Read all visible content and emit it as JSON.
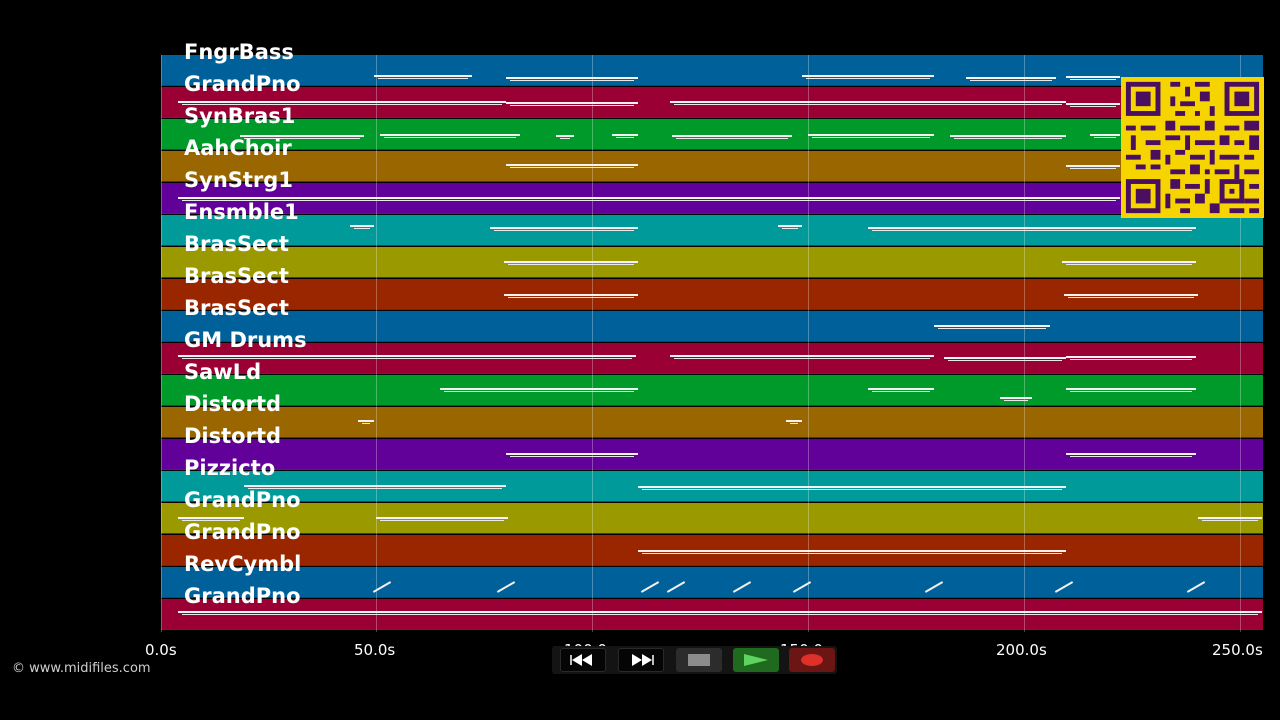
{
  "tracks": [
    {
      "name": "FngrBass",
      "color": "#00619a"
    },
    {
      "name": "GrandPno",
      "color": "#9a0034"
    },
    {
      "name": "SynBras1",
      "color": "#009a2a"
    },
    {
      "name": "AahChoir",
      "color": "#9a6600"
    },
    {
      "name": "SynStrg1",
      "color": "#62009a"
    },
    {
      "name": "Ensmble1",
      "color": "#009a9a"
    },
    {
      "name": "BrasSect",
      "color": "#9a9a00"
    },
    {
      "name": "BrasSect",
      "color": "#9a2600"
    },
    {
      "name": "BrasSect",
      "color": "#00619a"
    },
    {
      "name": "GM Drums",
      "color": "#9a0034"
    },
    {
      "name": "SawLd",
      "color": "#009a2a"
    },
    {
      "name": "Distortd",
      "color": "#9a6600"
    },
    {
      "name": "Distortd",
      "color": "#62009a"
    },
    {
      "name": "Pizzicto",
      "color": "#009a9a"
    },
    {
      "name": "GrandPno",
      "color": "#9a9a00"
    },
    {
      "name": "GrandPno",
      "color": "#9a2600"
    },
    {
      "name": "RevCymbl",
      "color": "#00619a"
    },
    {
      "name": "GrandPno",
      "color": "#9a0034"
    }
  ],
  "timeline": {
    "ticks": [
      "0.0s",
      "50.0s",
      "100.0s",
      "150.0s",
      "200.0s",
      "250.0s"
    ]
  },
  "transport": {
    "rewind_icon": "rewind-icon",
    "fast_forward_icon": "fast-forward-icon",
    "stop_icon": "stop-icon",
    "play_icon": "play-icon",
    "record_icon": "record-icon"
  },
  "credit": "© www.midifiles.com"
}
